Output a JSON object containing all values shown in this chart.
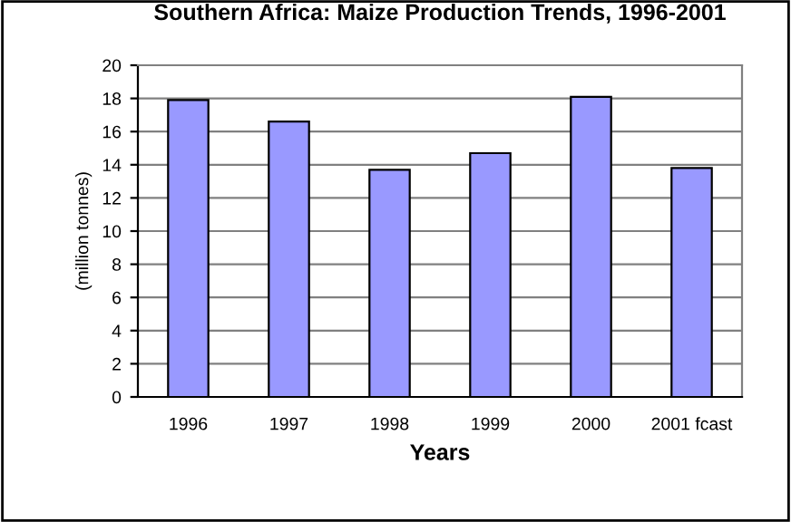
{
  "chart_data": {
    "type": "bar",
    "title": "Southern Africa: Maize Production Trends, 1996-2001",
    "xlabel": "Years",
    "ylabel": "(million tonnes)",
    "categories": [
      "1996",
      "1997",
      "1998",
      "1999",
      "2000",
      "2001 fcast"
    ],
    "values": [
      17.9,
      16.6,
      13.7,
      14.7,
      18.1,
      13.8
    ],
    "color": "#9999ff",
    "ylim": [
      0,
      20
    ],
    "yticks": [
      0,
      2,
      4,
      6,
      8,
      10,
      12,
      14,
      16,
      18,
      20
    ],
    "grid": "y",
    "legend": false
  }
}
